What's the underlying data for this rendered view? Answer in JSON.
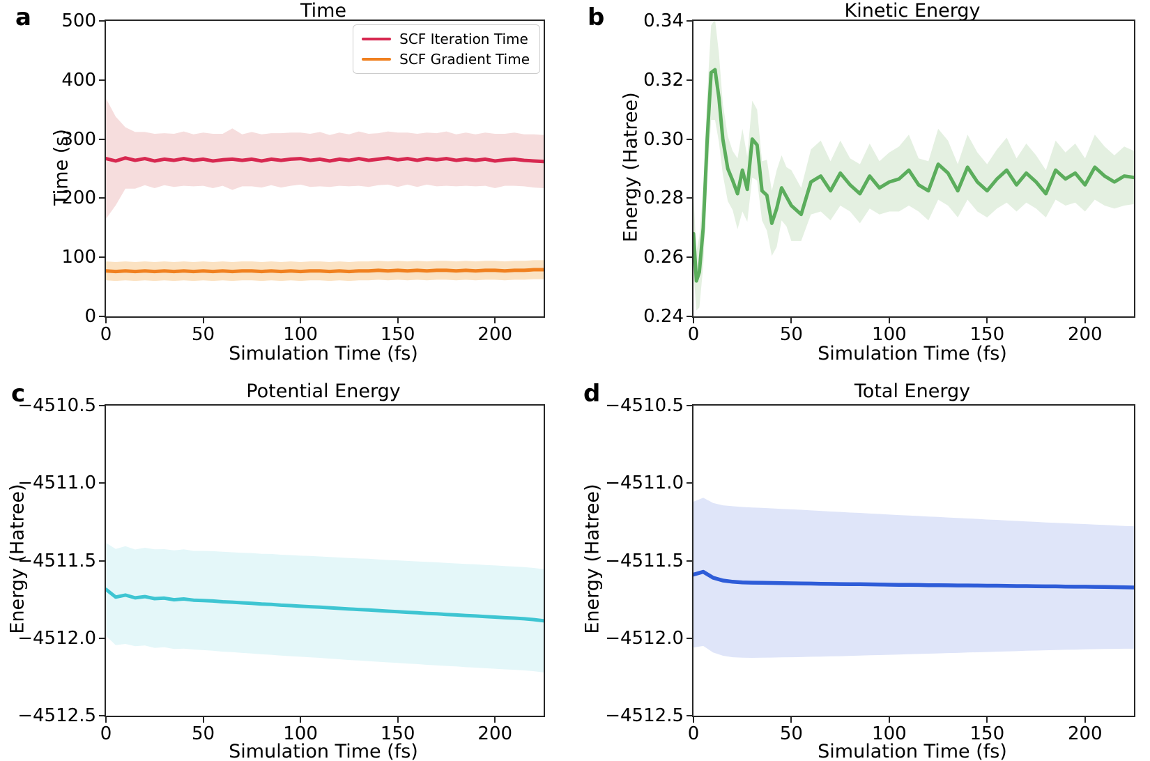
{
  "panels": [
    {
      "letter": "a",
      "title": "Time",
      "xlabel": "Simulation Time (fs)",
      "ylabel": "Time (s)"
    },
    {
      "letter": "b",
      "title": "Kinetic Energy",
      "xlabel": "Simulation Time (fs)",
      "ylabel": "Energy (Hatree)"
    },
    {
      "letter": "c",
      "title": "Potential Energy",
      "xlabel": "Simulation Time (fs)",
      "ylabel": "Energy (Hatree)"
    },
    {
      "letter": "d",
      "title": "Total Energy",
      "xlabel": "Simulation Time (fs)",
      "ylabel": "Energy (Hatree)"
    }
  ],
  "legend": {
    "items": [
      {
        "label": "SCF Iteration Time",
        "color": "#d72850"
      },
      {
        "label": "SCF Gradient Time",
        "color": "#f0801f"
      }
    ]
  },
  "chart_data": [
    {
      "type": "line",
      "title": "Time",
      "xlabel": "Simulation Time (fs)",
      "ylabel": "Time (s)",
      "xlim": [
        0,
        225
      ],
      "ylim": [
        0,
        500
      ],
      "grid": false,
      "legend_position": "upper right",
      "xtick_values": [
        0,
        50,
        100,
        150,
        200
      ],
      "xtick_labels": [
        "0",
        "50",
        "100",
        "150",
        "200"
      ],
      "ytick_values": [
        0,
        100,
        200,
        300,
        400,
        500
      ],
      "ytick_labels": [
        "0",
        "100",
        "200",
        "300",
        "400",
        "500"
      ],
      "series": [
        {
          "name": "SCF Iteration Time",
          "color": "#d72850",
          "band_color": "#f6dddd",
          "width": 5,
          "x": [
            0,
            5,
            10,
            15,
            20,
            25,
            30,
            35,
            40,
            45,
            50,
            55,
            60,
            65,
            70,
            75,
            80,
            85,
            90,
            95,
            100,
            105,
            110,
            115,
            120,
            125,
            130,
            135,
            140,
            145,
            150,
            155,
            160,
            165,
            170,
            175,
            180,
            185,
            190,
            195,
            200,
            205,
            210,
            215,
            220,
            225
          ],
          "mean": [
            267,
            263,
            268,
            264,
            267,
            263,
            266,
            264,
            267,
            264,
            266,
            263,
            265,
            266,
            264,
            266,
            263,
            266,
            264,
            266,
            267,
            264,
            266,
            263,
            266,
            264,
            267,
            264,
            266,
            268,
            265,
            267,
            264,
            267,
            265,
            267,
            264,
            266,
            264,
            266,
            263,
            265,
            266,
            264,
            263,
            262
          ],
          "band_halfwidth": [
            102,
            75,
            52,
            48,
            45,
            46,
            44,
            45,
            46,
            44,
            45,
            46,
            44,
            52,
            44,
            46,
            45,
            44,
            46,
            45,
            44,
            45,
            46,
            44,
            45,
            44,
            46,
            45,
            44,
            45,
            46,
            44,
            45,
            44,
            45,
            46,
            44,
            45,
            44,
            45,
            46,
            44,
            45,
            44,
            45,
            45
          ]
        },
        {
          "name": "SCF Gradient Time",
          "color": "#f0801f",
          "band_color": "#fbe2c2",
          "width": 5,
          "x": [
            0,
            5,
            10,
            15,
            20,
            25,
            30,
            35,
            40,
            45,
            50,
            55,
            60,
            65,
            70,
            75,
            80,
            85,
            90,
            95,
            100,
            105,
            110,
            115,
            120,
            125,
            130,
            135,
            140,
            145,
            150,
            155,
            160,
            165,
            170,
            175,
            180,
            185,
            190,
            195,
            200,
            205,
            210,
            215,
            220,
            225
          ],
          "mean": [
            77,
            76,
            77,
            76,
            77,
            76,
            77,
            76,
            77,
            76,
            77,
            76,
            77,
            76,
            77,
            77,
            76,
            77,
            76,
            77,
            76,
            77,
            77,
            76,
            77,
            76,
            77,
            77,
            78,
            77,
            78,
            77,
            78,
            77,
            78,
            78,
            77,
            78,
            77,
            78,
            78,
            77,
            78,
            78,
            79,
            79
          ],
          "band_halfwidth": 16
        }
      ]
    },
    {
      "type": "line",
      "title": "Kinetic Energy",
      "xlabel": "Simulation Time (fs)",
      "ylabel": "Energy (Hatree)",
      "xlim": [
        0,
        225
      ],
      "ylim": [
        0.24,
        0.34
      ],
      "grid": false,
      "xtick_values": [
        0,
        50,
        100,
        150,
        200
      ],
      "xtick_labels": [
        "0",
        "50",
        "100",
        "150",
        "200"
      ],
      "ytick_values": [
        0.24,
        0.26,
        0.28,
        0.3,
        0.32,
        0.34
      ],
      "ytick_labels": [
        "0.24",
        "0.26",
        "0.28",
        "0.30",
        "0.32",
        "0.34"
      ],
      "series": [
        {
          "name": "Kinetic Energy",
          "color": "#5bad5c",
          "band_color": "#e4f0e1",
          "width": 5,
          "x": [
            0,
            1.5,
            3,
            5,
            7,
            9,
            11,
            13,
            15,
            17.5,
            20,
            22.5,
            25,
            27.5,
            30,
            32.5,
            35,
            37.5,
            40,
            42.5,
            45,
            47.5,
            50,
            55,
            60,
            65,
            70,
            75,
            80,
            85,
            90,
            95,
            100,
            105,
            110,
            115,
            120,
            125,
            130,
            135,
            140,
            145,
            150,
            155,
            160,
            165,
            170,
            175,
            180,
            185,
            190,
            195,
            200,
            205,
            210,
            215,
            220,
            225
          ],
          "mean": [
            0.268,
            0.252,
            0.255,
            0.27,
            0.3,
            0.3225,
            0.3235,
            0.314,
            0.3,
            0.29,
            0.286,
            0.2815,
            0.2895,
            0.283,
            0.3,
            0.298,
            0.2825,
            0.281,
            0.2715,
            0.2765,
            0.2835,
            0.2805,
            0.2775,
            0.2745,
            0.2855,
            0.2875,
            0.2825,
            0.2885,
            0.2845,
            0.2815,
            0.2875,
            0.2835,
            0.2855,
            0.2865,
            0.2895,
            0.2845,
            0.2825,
            0.2915,
            0.2885,
            0.2825,
            0.2905,
            0.2855,
            0.2825,
            0.2865,
            0.2895,
            0.2845,
            0.2885,
            0.2855,
            0.2815,
            0.2895,
            0.2865,
            0.2885,
            0.2845,
            0.2905,
            0.2875,
            0.2855,
            0.2875,
            0.287
          ],
          "band_halfwidth": [
            0.013,
            0.01,
            0.012,
            0.013,
            0.015,
            0.016,
            0.017,
            0.015,
            0.012,
            0.011,
            0.01,
            0.012,
            0.014,
            0.011,
            0.013,
            0.012,
            0.01,
            0.012,
            0.011,
            0.013,
            0.011,
            0.01,
            0.012,
            0.009,
            0.011,
            0.012,
            0.01,
            0.011,
            0.009,
            0.01,
            0.011,
            0.009,
            0.01,
            0.011,
            0.012,
            0.009,
            0.01,
            0.012,
            0.011,
            0.009,
            0.011,
            0.01,
            0.009,
            0.01,
            0.011,
            0.009,
            0.01,
            0.009,
            0.008,
            0.01,
            0.009,
            0.01,
            0.009,
            0.011,
            0.01,
            0.009,
            0.01,
            0.009
          ]
        }
      ]
    },
    {
      "type": "line",
      "title": "Potential Energy",
      "xlabel": "Simulation Time (fs)",
      "ylabel": "Energy (Hatree)",
      "xlim": [
        0,
        225
      ],
      "ylim": [
        -4512.5,
        -4510.5
      ],
      "grid": false,
      "xtick_values": [
        0,
        50,
        100,
        150,
        200
      ],
      "xtick_labels": [
        "0",
        "50",
        "100",
        "150",
        "200"
      ],
      "ytick_values": [
        -4512.5,
        -4512.0,
        -4511.5,
        -4511.0,
        -4510.5
      ],
      "ytick_labels": [
        "−4512.5",
        "−4512.0",
        "−4511.5",
        "−4511.0",
        "−4510.5"
      ],
      "series": [
        {
          "name": "Potential Energy",
          "color": "#3ec5d2",
          "band_color": "#e4f7f9",
          "width": 5,
          "x": [
            0,
            5,
            10,
            15,
            20,
            25,
            30,
            35,
            40,
            45,
            50,
            55,
            60,
            65,
            70,
            75,
            80,
            85,
            90,
            95,
            100,
            105,
            110,
            115,
            120,
            125,
            130,
            135,
            140,
            145,
            150,
            155,
            160,
            165,
            170,
            175,
            180,
            185,
            190,
            195,
            200,
            205,
            210,
            215,
            220,
            225
          ],
          "mean": [
            -4511.685,
            -4511.735,
            -4511.722,
            -4511.74,
            -4511.732,
            -4511.745,
            -4511.742,
            -4511.752,
            -4511.747,
            -4511.755,
            -4511.757,
            -4511.76,
            -4511.765,
            -4511.768,
            -4511.772,
            -4511.775,
            -4511.78,
            -4511.782,
            -4511.787,
            -4511.79,
            -4511.794,
            -4511.797,
            -4511.8,
            -4511.804,
            -4511.808,
            -4511.812,
            -4511.815,
            -4511.818,
            -4511.822,
            -4511.826,
            -4511.829,
            -4511.833,
            -4511.836,
            -4511.84,
            -4511.843,
            -4511.847,
            -4511.85,
            -4511.854,
            -4511.857,
            -4511.861,
            -4511.864,
            -4511.868,
            -4511.871,
            -4511.875,
            -4511.88,
            -4511.888
          ],
          "band_halfwidth": [
            0.3,
            0.31,
            0.315,
            0.312,
            0.315,
            0.318,
            0.316,
            0.318,
            0.32,
            0.318,
            0.32,
            0.321,
            0.322,
            0.322,
            0.323,
            0.324,
            0.324,
            0.325,
            0.325,
            0.326,
            0.326,
            0.327,
            0.327,
            0.328,
            0.328,
            0.329,
            0.329,
            0.33,
            0.33,
            0.33,
            0.331,
            0.331,
            0.331,
            0.332,
            0.332,
            0.332,
            0.332,
            0.333,
            0.333,
            0.333,
            0.333,
            0.333,
            0.333,
            0.333,
            0.333,
            0.333
          ]
        }
      ]
    },
    {
      "type": "line",
      "title": "Total Energy",
      "xlabel": "Simulation Time (fs)",
      "ylabel": "Energy (Hatree)",
      "xlim": [
        0,
        225
      ],
      "ylim": [
        -4512.5,
        -4510.5
      ],
      "grid": false,
      "xtick_values": [
        0,
        50,
        100,
        150,
        200
      ],
      "xtick_labels": [
        "0",
        "50",
        "100",
        "150",
        "200"
      ],
      "ytick_values": [
        -4512.5,
        -4512.0,
        -4511.5,
        -4511.0,
        -4510.5
      ],
      "ytick_labels": [
        "−4512.5",
        "−4512.0",
        "−4511.5",
        "−4511.0",
        "−4510.5"
      ],
      "series": [
        {
          "name": "Total Energy",
          "color": "#2e5cd8",
          "band_color": "#dfe5f9",
          "width": 5.5,
          "x": [
            0,
            5,
            10,
            15,
            20,
            25,
            30,
            35,
            40,
            45,
            50,
            55,
            60,
            65,
            70,
            75,
            80,
            85,
            90,
            95,
            100,
            105,
            110,
            115,
            120,
            125,
            130,
            135,
            140,
            145,
            150,
            155,
            160,
            165,
            170,
            175,
            180,
            185,
            190,
            195,
            200,
            205,
            210,
            215,
            220,
            225
          ],
          "mean": [
            -4511.59,
            -4511.572,
            -4511.61,
            -4511.628,
            -4511.636,
            -4511.64,
            -4511.642,
            -4511.643,
            -4511.644,
            -4511.645,
            -4511.646,
            -4511.647,
            -4511.648,
            -4511.649,
            -4511.65,
            -4511.651,
            -4511.652,
            -4511.652,
            -4511.653,
            -4511.654,
            -4511.655,
            -4511.656,
            -4511.656,
            -4511.657,
            -4511.658,
            -4511.658,
            -4511.659,
            -4511.66,
            -4511.66,
            -4511.661,
            -4511.662,
            -4511.662,
            -4511.663,
            -4511.664,
            -4511.664,
            -4511.665,
            -4511.666,
            -4511.666,
            -4511.667,
            -4511.668,
            -4511.668,
            -4511.669,
            -4511.67,
            -4511.671,
            -4511.672,
            -4511.673
          ],
          "band_halfwidth": [
            0.47,
            0.478,
            0.482,
            0.485,
            0.487,
            0.486,
            0.485,
            0.483,
            0.481,
            0.479,
            0.477,
            0.475,
            0.472,
            0.47,
            0.467,
            0.465,
            0.462,
            0.46,
            0.457,
            0.455,
            0.452,
            0.45,
            0.447,
            0.445,
            0.442,
            0.44,
            0.437,
            0.435,
            0.432,
            0.43,
            0.427,
            0.425,
            0.422,
            0.42,
            0.417,
            0.415,
            0.412,
            0.41,
            0.408,
            0.406,
            0.404,
            0.402,
            0.4,
            0.398,
            0.396,
            0.395
          ]
        }
      ]
    }
  ]
}
